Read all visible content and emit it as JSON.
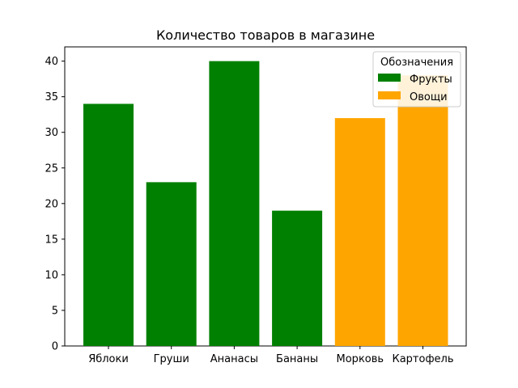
{
  "chart_data": {
    "type": "bar",
    "title": "Количество товаров в магазине",
    "xlabel": "",
    "ylabel": "",
    "categories": [
      "Яблоки",
      "Груши",
      "Ананасы",
      "Бананы",
      "Морковь",
      "Картофель"
    ],
    "values": [
      34,
      23,
      40,
      19,
      32,
      38
    ],
    "bar_groups": [
      "Фрукты",
      "Фрукты",
      "Фрукты",
      "Фрукты",
      "Овощи",
      "Овощи"
    ],
    "ylim": [
      0,
      42
    ],
    "yticks": [
      0,
      5,
      10,
      15,
      20,
      25,
      30,
      35,
      40
    ],
    "grid": false,
    "legend": {
      "title": "Обозначения",
      "placement": "top-right",
      "items": [
        {
          "label": "Фрукты",
          "color": "#008000"
        },
        {
          "label": "Овощи",
          "color": "#FFA500"
        }
      ]
    }
  }
}
